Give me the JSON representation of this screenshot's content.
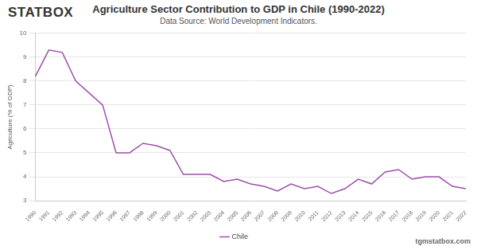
{
  "chart_data": {
    "type": "line",
    "title": "Agriculture Sector Contribution to GDP in Chile (1990-2022)",
    "subtitle": "Data Source: World Development Indicators.",
    "logo": "STATBOX",
    "footer": "tgmstatbox.com",
    "y_label": "Agriculture (% of GDP)",
    "categories": [
      "1990",
      "1991",
      "1992",
      "1993",
      "1994",
      "1995",
      "1996",
      "1997",
      "1998",
      "1999",
      "2000",
      "2001",
      "2002",
      "2003",
      "2004",
      "2005",
      "2006",
      "2007",
      "2008",
      "2009",
      "2010",
      "2011",
      "2012",
      "2013",
      "2014",
      "2015",
      "2016",
      "2017",
      "2018",
      "2019",
      "2020",
      "2021",
      "2022"
    ],
    "series": [
      {
        "name": "Chile",
        "color": "#9c50a8",
        "values": [
          8.2,
          9.3,
          9.2,
          8.0,
          7.5,
          7.0,
          5.0,
          5.0,
          5.4,
          5.3,
          5.1,
          4.1,
          4.1,
          4.1,
          3.8,
          3.9,
          3.7,
          3.6,
          3.4,
          3.7,
          3.5,
          3.6,
          3.3,
          3.5,
          3.9,
          3.7,
          4.2,
          4.3,
          3.9,
          4.0,
          4.0,
          3.6,
          3.5
        ]
      }
    ],
    "ylim": [
      3,
      10
    ],
    "yticks": [
      3,
      4,
      5,
      6,
      7,
      8,
      9,
      10
    ],
    "grid": true,
    "legend": "bottom"
  }
}
